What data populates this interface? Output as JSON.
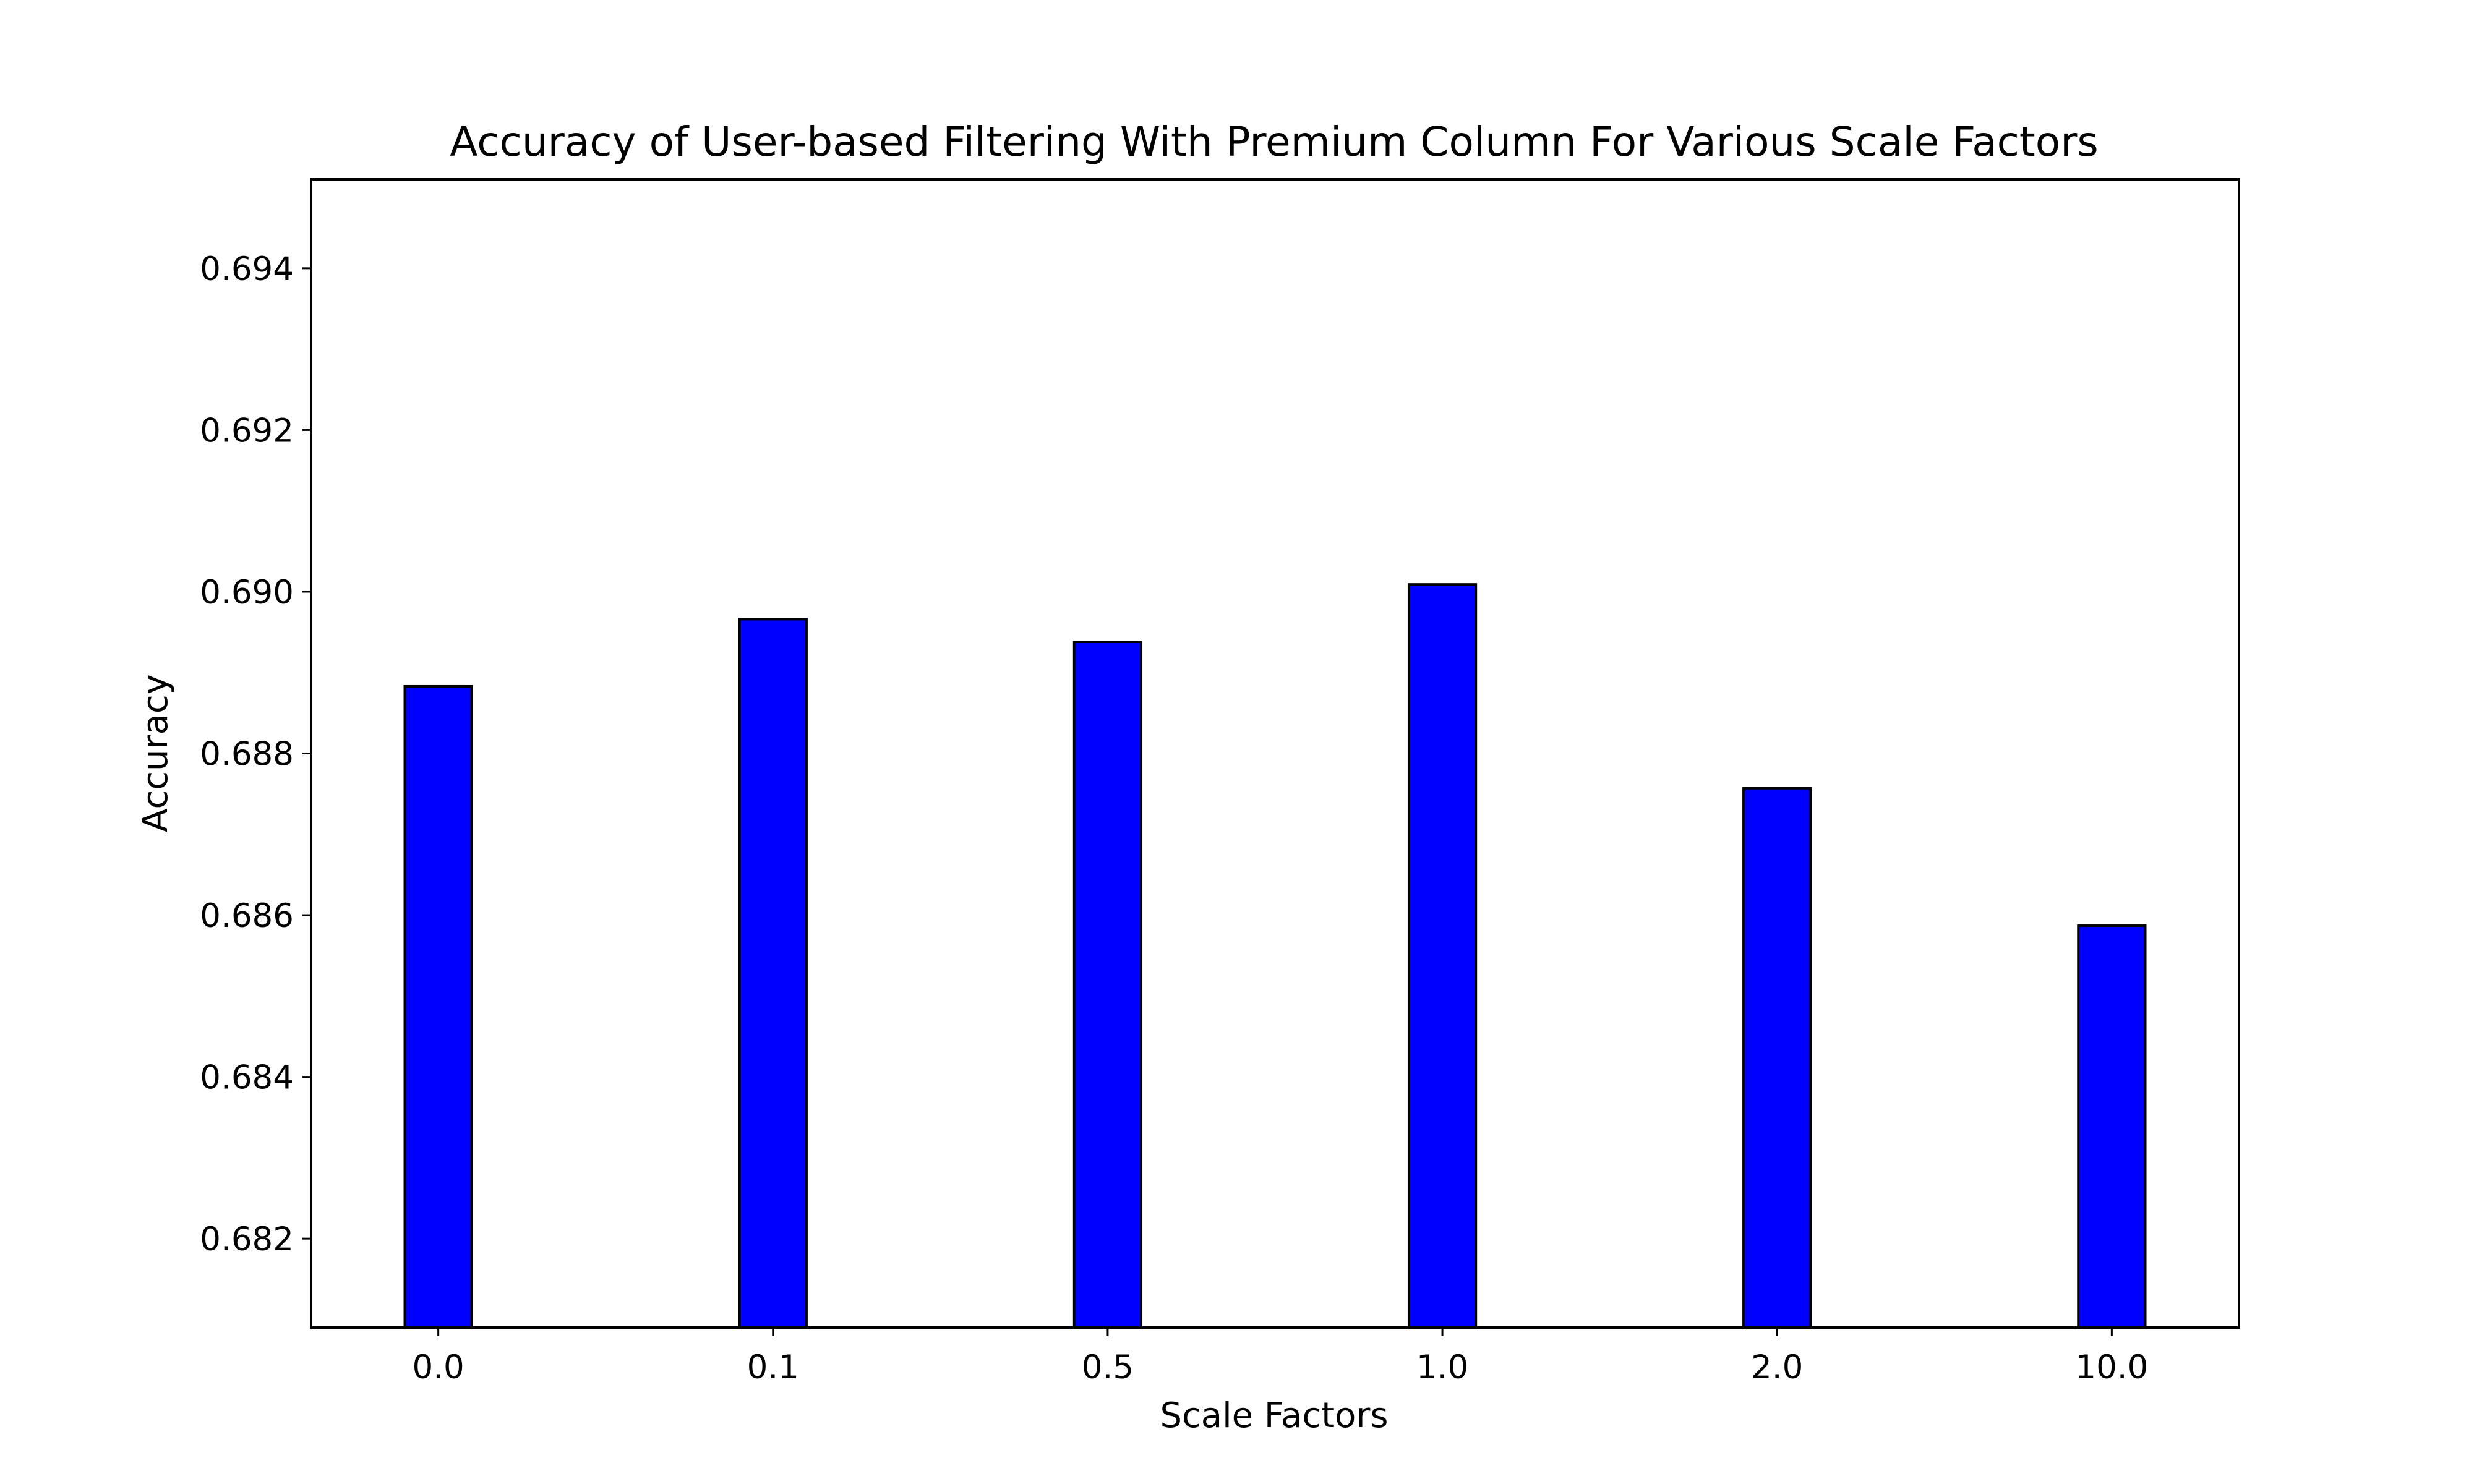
{
  "chart_data": {
    "type": "bar",
    "title": "Accuracy of User-based Filtering With Premium Column For Various Scale Factors",
    "xlabel": "Scale Factors",
    "ylabel": "Accuracy",
    "categories": [
      "0.0",
      "0.1",
      "0.5",
      "1.0",
      "2.0",
      "10.0"
    ],
    "values": [
      0.68883,
      0.68966,
      0.68938,
      0.69009,
      0.68757,
      0.68587
    ],
    "ylim": [
      0.6809,
      0.6951
    ],
    "yticks": [
      0.682,
      0.684,
      0.686,
      0.688,
      0.69,
      0.692,
      0.694
    ],
    "ytick_labels": [
      "0.682",
      "0.684",
      "0.686",
      "0.688",
      "0.690",
      "0.692",
      "0.694"
    ],
    "grid": false,
    "bar_color": "#0000ff",
    "edge_color": "#000000"
  }
}
